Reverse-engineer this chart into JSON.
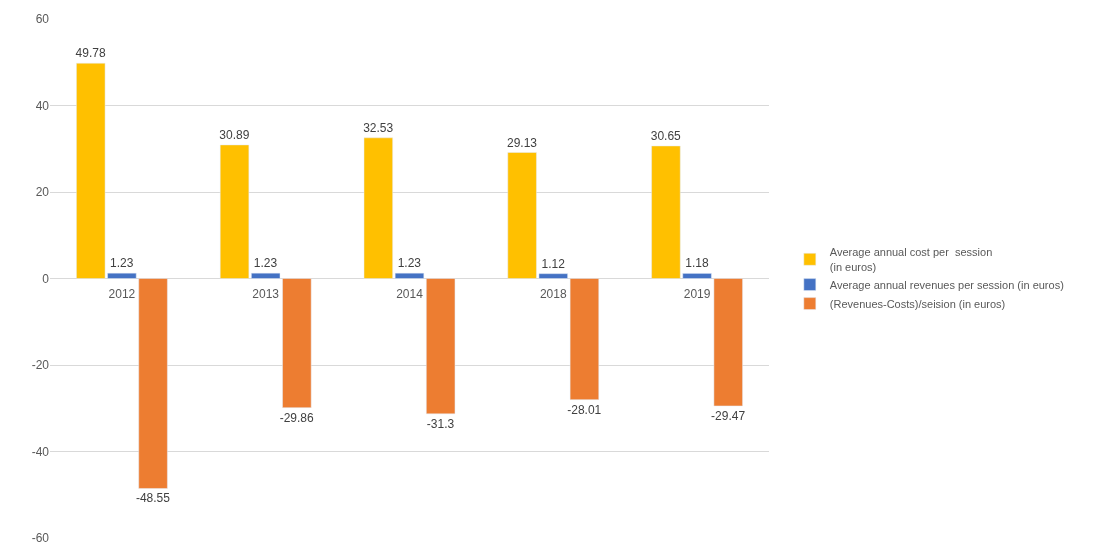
{
  "chart_data": {
    "type": "bar",
    "categories": [
      "2012",
      "2013",
      "2014",
      "2018",
      "2019"
    ],
    "series": [
      {
        "name": "Average annual cost per  session\n(in euros)",
        "color": "#ffc000",
        "values": [
          49.78,
          30.89,
          32.53,
          29.13,
          30.65
        ]
      },
      {
        "name": "Average annual revenues per session (in euros)",
        "color": "#4472c4",
        "values": [
          1.23,
          1.23,
          1.23,
          1.12,
          1.18
        ]
      },
      {
        "name": "(Revenues-Costs)/seision (in euros)",
        "color": "#ed7d31",
        "values": [
          -48.55,
          -29.86,
          -31.3,
          -28.01,
          -29.47
        ]
      }
    ],
    "ylim": [
      -60,
      60
    ],
    "yticks": [
      -60,
      -40,
      -20,
      0,
      20,
      40,
      60
    ],
    "grid": "y",
    "legend": "right",
    "data_labels": true
  }
}
